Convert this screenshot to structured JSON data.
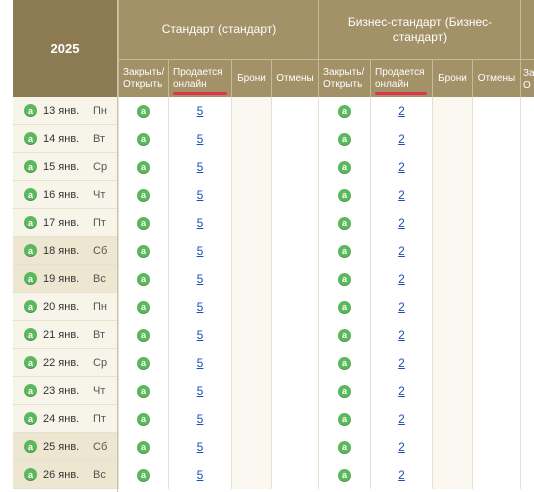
{
  "year": "2025",
  "room_types": [
    {
      "name": "Стандарт (стандарт)"
    },
    {
      "name": "Бизнес-стандарт (Бизнес-стандарт)"
    }
  ],
  "subheaders": {
    "closed_open": "Закрыть/ Открыть",
    "sold_online": "Продается онлайн",
    "bookings": "Брони",
    "cancellations": "Отмены"
  },
  "third_group_partial": {
    "subheader_line1": "За",
    "subheader_line2": "О"
  },
  "dates": [
    {
      "date": "13 янв.",
      "weekday": "Пн",
      "weekend": false
    },
    {
      "date": "14 янв.",
      "weekday": "Вт",
      "weekend": false
    },
    {
      "date": "15 янв.",
      "weekday": "Ср",
      "weekend": false
    },
    {
      "date": "16 янв.",
      "weekday": "Чт",
      "weekend": false
    },
    {
      "date": "17 янв.",
      "weekday": "Пт",
      "weekend": false
    },
    {
      "date": "18 янв.",
      "weekday": "Сб",
      "weekend": true
    },
    {
      "date": "19 янв.",
      "weekday": "Вс",
      "weekend": true
    },
    {
      "date": "20 янв.",
      "weekday": "Пн",
      "weekend": false
    },
    {
      "date": "21 янв.",
      "weekday": "Вт",
      "weekend": false
    },
    {
      "date": "22 янв.",
      "weekday": "Ср",
      "weekend": false
    },
    {
      "date": "23 янв.",
      "weekday": "Чт",
      "weekend": false
    },
    {
      "date": "24 янв.",
      "weekday": "Пт",
      "weekend": false
    },
    {
      "date": "25 янв.",
      "weekday": "Сб",
      "weekend": true
    },
    {
      "date": "26 янв.",
      "weekday": "Вс",
      "weekend": true
    }
  ],
  "badge_letter": "a",
  "standard_online": [
    "5",
    "5",
    "5",
    "5",
    "5",
    "5",
    "5",
    "5",
    "5",
    "5",
    "5",
    "5",
    "5",
    "5"
  ],
  "business_online": [
    "2",
    "2",
    "2",
    "2",
    "2",
    "2",
    "2",
    "2",
    "2",
    "2",
    "2",
    "2",
    "2",
    "2"
  ],
  "colors": {
    "header": "#a39168",
    "year_header": "#8b7a52",
    "badge_green": "#5cb85c",
    "link": "#1d4fb3",
    "underline_red": "#e0344f"
  }
}
